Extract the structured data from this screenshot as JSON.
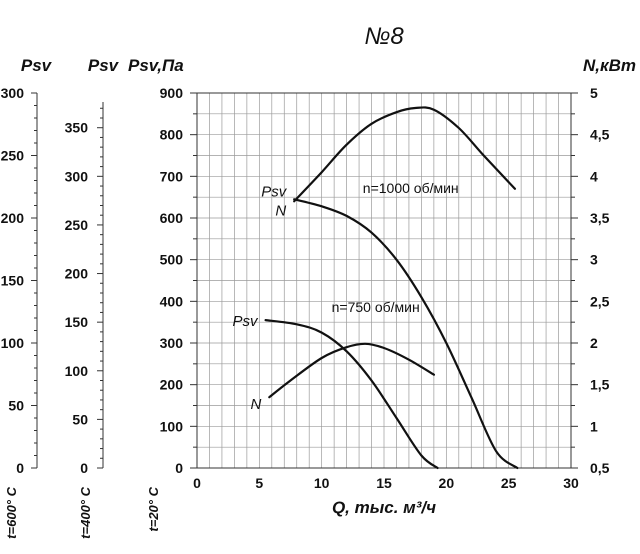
{
  "chart_data": {
    "type": "line",
    "title": "№8",
    "xlabel": "Q, тыс. м³/ч",
    "xlim": [
      0,
      30
    ],
    "x_ticks": [
      "0",
      "5",
      "10",
      "15",
      "20",
      "25",
      "30"
    ],
    "grid": true,
    "axes": [
      {
        "id": "psv_main",
        "title": "Psv,Па",
        "side": "left",
        "range": [
          0,
          900
        ],
        "ticks": [
          "0",
          "100",
          "200",
          "300",
          "400",
          "500",
          "600",
          "700",
          "800",
          "900"
        ],
        "temperature_label": "t=20° C"
      },
      {
        "id": "psv_400",
        "title": "Psv",
        "side": "left",
        "range": [
          0,
          385.7
        ],
        "ticks": [
          "0",
          "50",
          "100",
          "150",
          "200",
          "250",
          "300",
          "350"
        ],
        "temperature_label": "t=400° C"
      },
      {
        "id": "psv_600",
        "title": "Psv",
        "side": "left",
        "range": [
          0,
          300
        ],
        "ticks": [
          "0",
          "50",
          "100",
          "150",
          "200",
          "250",
          "300"
        ],
        "temperature_label": "t=600° C"
      },
      {
        "id": "power",
        "title": "N,кВт",
        "side": "right",
        "range": [
          0.5,
          5
        ],
        "ticks": [
          "0,5",
          "1",
          "1,5",
          "2",
          "2,5",
          "3",
          "3,5",
          "4",
          "4,5",
          "5"
        ]
      }
    ],
    "series": [
      {
        "name": "Psv",
        "speed_label": "n=1000 об/мин",
        "axis": "psv_main",
        "x": [
          7.8,
          10,
          12,
          14,
          16,
          18,
          20,
          22,
          24,
          25.7
        ],
        "y": [
          645,
          628,
          605,
          565,
          500,
          410,
          300,
          170,
          40,
          0
        ]
      },
      {
        "name": "N",
        "speed_label": "n=1000 об/мин",
        "axis": "power",
        "x": [
          7.8,
          10,
          12,
          14,
          16,
          17.5,
          19,
          21,
          23,
          25.5
        ],
        "y": [
          3.7,
          4.05,
          4.38,
          4.63,
          4.77,
          4.82,
          4.8,
          4.58,
          4.25,
          3.85
        ]
      },
      {
        "name": "Psv",
        "speed_label": "n=750 об/мин",
        "axis": "psv_main",
        "x": [
          5.5,
          8,
          10,
          12,
          14,
          16,
          18,
          19.3
        ],
        "y": [
          355,
          345,
          325,
          280,
          210,
          120,
          30,
          0
        ]
      },
      {
        "name": "N",
        "speed_label": "n=750 об/мин",
        "axis": "power",
        "x": [
          5.8,
          7.5,
          10,
          12,
          13.5,
          15,
          17,
          19
        ],
        "y": [
          1.35,
          1.55,
          1.82,
          1.95,
          1.99,
          1.94,
          1.8,
          1.62
        ]
      }
    ]
  }
}
